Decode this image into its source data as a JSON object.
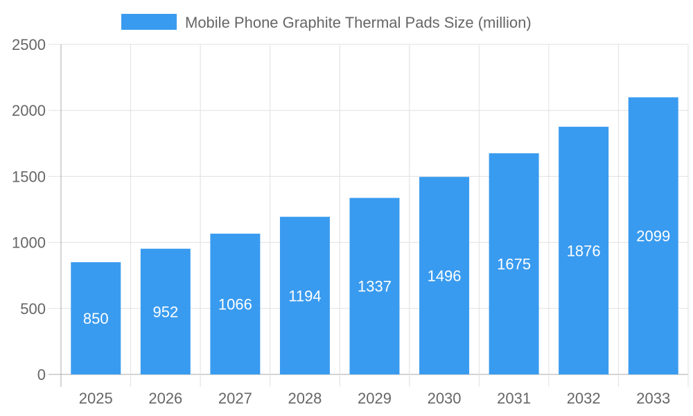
{
  "chart_data": {
    "type": "bar",
    "categories": [
      "2025",
      "2026",
      "2027",
      "2028",
      "2029",
      "2030",
      "2031",
      "2032",
      "2033"
    ],
    "series": [
      {
        "name": "Mobile Phone Graphite Thermal Pads Size (million)",
        "values": [
          850,
          952,
          1066,
          1194,
          1337,
          1496,
          1675,
          1876,
          2099
        ]
      }
    ],
    "ylim": [
      0,
      2500
    ],
    "yticks": [
      0,
      500,
      1000,
      1500,
      2000,
      2500
    ],
    "grid": true,
    "legend": "top",
    "data_labels": true,
    "colors": {
      "bar": "#399BEF",
      "grid": "#e0e0e0",
      "text": "#666666"
    }
  }
}
